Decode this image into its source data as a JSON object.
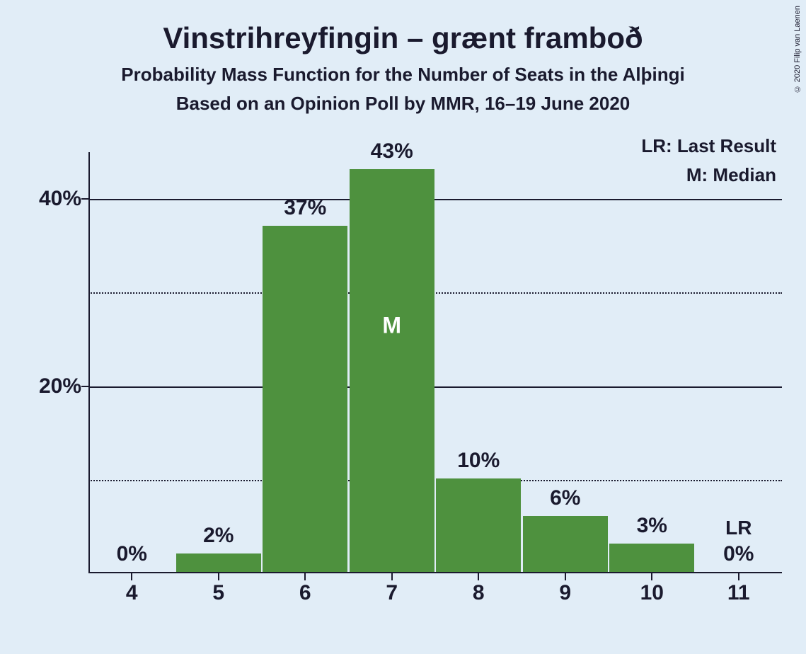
{
  "copyright": "© 2020 Filip van Laenen",
  "title": "Vinstrihreyfingin – grænt framboð",
  "subtitle": "Probability Mass Function for the Number of Seats in the Alþingi",
  "subtitle2": "Based on an Opinion Poll by MMR, 16–19 June 2020",
  "legend": {
    "lr": "LR: Last Result",
    "m": "M: Median"
  },
  "chart": {
    "type": "bar",
    "background_color": "#e1edf7",
    "bar_color": "#4e913e",
    "axis_color": "#1a1a2e",
    "text_color": "#1a1a2e",
    "median_text_color": "#ffffff",
    "title_fontsize": 42,
    "subtitle_fontsize": 26,
    "label_fontsize": 30,
    "legend_fontsize": 26,
    "y_axis": {
      "min": 0,
      "max": 45,
      "major_ticks": [
        20,
        40
      ],
      "minor_ticks": [
        10,
        30
      ],
      "tick_labels": {
        "20": "20%",
        "40": "40%"
      }
    },
    "x_axis": {
      "categories": [
        4,
        5,
        6,
        7,
        8,
        9,
        10,
        11
      ]
    },
    "bars": [
      {
        "x": 4,
        "value": 0,
        "label": "0%"
      },
      {
        "x": 5,
        "value": 2,
        "label": "2%"
      },
      {
        "x": 6,
        "value": 37,
        "label": "37%"
      },
      {
        "x": 7,
        "value": 43,
        "label": "43%",
        "median": true,
        "median_label": "M"
      },
      {
        "x": 8,
        "value": 10,
        "label": "10%"
      },
      {
        "x": 9,
        "value": 6,
        "label": "6%"
      },
      {
        "x": 10,
        "value": 3,
        "label": "3%"
      },
      {
        "x": 11,
        "value": 0,
        "label": "0%",
        "lr": true,
        "lr_label": "LR"
      }
    ],
    "bar_width_ratio": 0.98
  }
}
